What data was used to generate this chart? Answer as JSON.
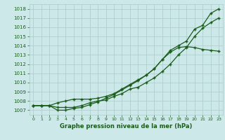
{
  "x": [
    0,
    1,
    2,
    3,
    4,
    5,
    6,
    7,
    8,
    9,
    10,
    11,
    12,
    13,
    14,
    15,
    16,
    17,
    18,
    19,
    20,
    21,
    22,
    23
  ],
  "line1": [
    1007.5,
    1007.5,
    1007.5,
    1007.3,
    1007.3,
    1007.3,
    1007.5,
    1007.8,
    1008.0,
    1008.1,
    1008.5,
    1008.8,
    1009.3,
    1009.5,
    1010.0,
    1010.5,
    1011.2,
    1012.0,
    1013.0,
    1013.8,
    1015.0,
    1015.9,
    1016.5,
    1017.0
  ],
  "line2": [
    1007.5,
    1007.5,
    1007.5,
    1007.8,
    1008.0,
    1008.2,
    1008.2,
    1008.2,
    1008.3,
    1008.5,
    1008.8,
    1009.3,
    1009.8,
    1010.3,
    1010.8,
    1011.5,
    1012.5,
    1013.3,
    1013.8,
    1013.9,
    1013.8,
    1013.6,
    1013.5,
    1013.4
  ],
  "line3": [
    1007.5,
    1007.5,
    1007.5,
    1007.0,
    1007.0,
    1007.2,
    1007.3,
    1007.6,
    1007.9,
    1008.3,
    1008.7,
    1009.2,
    1009.7,
    1010.2,
    1010.8,
    1011.5,
    1012.5,
    1013.5,
    1014.0,
    1014.5,
    1015.8,
    1016.2,
    1017.5,
    1018.0
  ],
  "ylim": [
    1006.5,
    1018.5
  ],
  "xlim": [
    -0.5,
    23.5
  ],
  "yticks": [
    1007,
    1008,
    1009,
    1010,
    1011,
    1012,
    1013,
    1014,
    1015,
    1016,
    1017,
    1018
  ],
  "xticks": [
    0,
    1,
    2,
    3,
    4,
    5,
    6,
    7,
    8,
    9,
    10,
    11,
    12,
    13,
    14,
    15,
    16,
    17,
    18,
    19,
    20,
    21,
    22,
    23
  ],
  "xlabel": "Graphe pression niveau de la mer (hPa)",
  "line_color": "#1a5c1a",
  "bg_color": "#cce8e8",
  "grid_color": "#aacccc",
  "marker": "+"
}
